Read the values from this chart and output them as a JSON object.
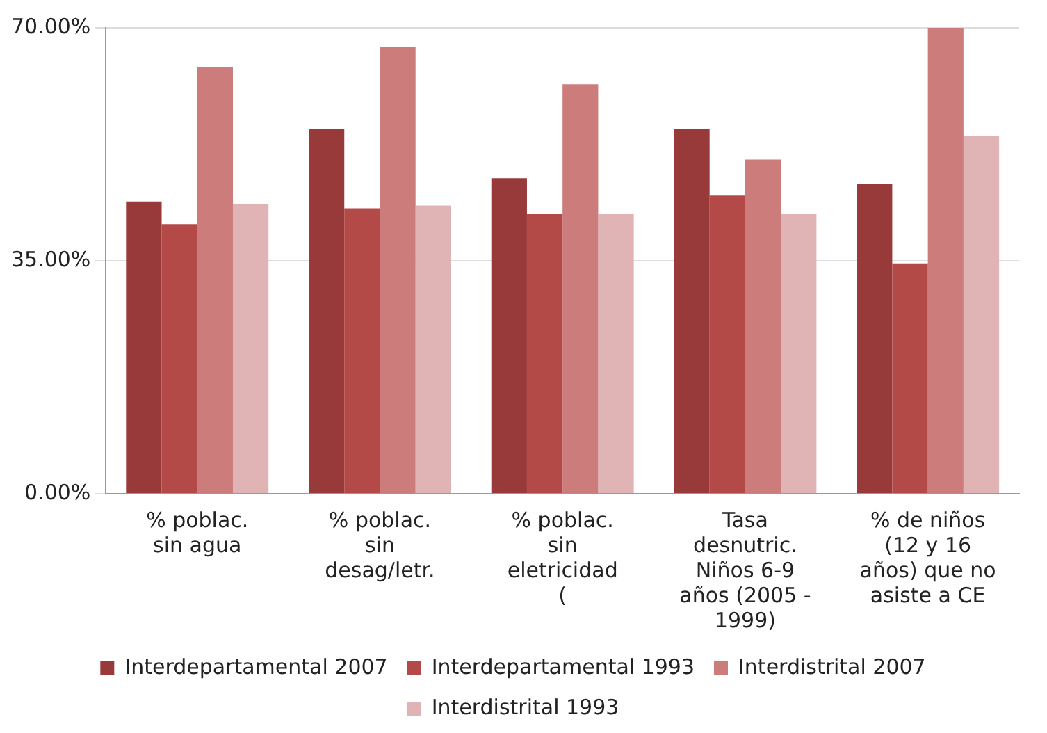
{
  "chart_data": {
    "type": "bar",
    "categories": [
      "% poblac. sin agua",
      "% poblac. sin desag/letr.",
      "% poblac. sin eletricidad (",
      "Tasa desnutric. Niños 6-9 años (2005 - 1999)",
      "% de niños (12 y 16 años) que no asiste a CE"
    ],
    "series": [
      {
        "name": "Interdepartamental 2007",
        "color": "#983a39",
        "values": [
          43.9,
          54.8,
          47.4,
          54.8,
          46.6
        ]
      },
      {
        "name": "Interdepartamental 1993",
        "color": "#b44a48",
        "values": [
          40.5,
          42.9,
          42.1,
          44.8,
          34.6
        ]
      },
      {
        "name": "Interdistrital 2007",
        "color": "#cd7c7c",
        "values": [
          64.1,
          67.1,
          61.5,
          50.2,
          70
        ]
      },
      {
        "name": "Interdistrital 1993",
        "color": "#e0b4b4",
        "values": [
          43.5,
          43.3,
          42.1,
          42.1,
          53.8
        ]
      }
    ],
    "ylim": [
      0,
      70
    ],
    "yticks": [
      {
        "value": 0,
        "label": "0.00%"
      },
      {
        "value": 35,
        "label": "35.00%"
      },
      {
        "value": 70,
        "label": "70.00%"
      }
    ],
    "grid": "y",
    "legend": "bottom"
  }
}
